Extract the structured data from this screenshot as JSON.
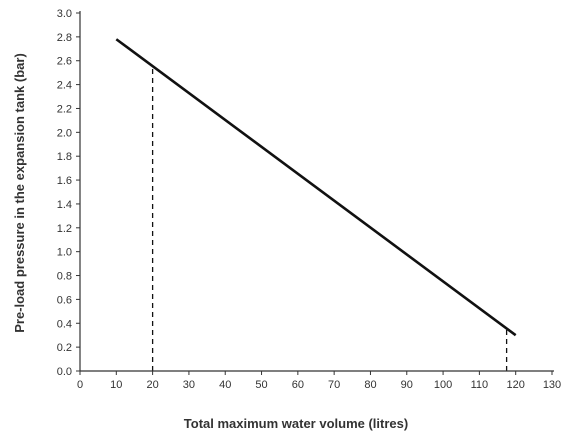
{
  "chart_data": {
    "type": "line",
    "title": "",
    "xlabel": "Total maximum water volume (litres)",
    "ylabel": "Pre-load pressure in the expansion tank (bar)",
    "xlim": [
      0,
      130
    ],
    "ylim": [
      0.0,
      3.0
    ],
    "x_ticks": [
      0,
      10,
      20,
      30,
      40,
      50,
      60,
      70,
      80,
      90,
      100,
      110,
      120,
      130
    ],
    "y_ticks": [
      "0.0",
      "0.2",
      "0.4",
      "0.6",
      "0.8",
      "1.0",
      "1.2",
      "1.4",
      "1.6",
      "1.8",
      "2.0",
      "2.2",
      "2.4",
      "2.6",
      "2.8",
      "3.0"
    ],
    "grid": false,
    "series": [
      {
        "x": [
          10,
          120
        ],
        "y": [
          2.78,
          0.3
        ]
      }
    ],
    "reference_lines": [
      {
        "style": "dashed",
        "x": 20,
        "y_from": 0.0,
        "y_to": 2.55
      },
      {
        "style": "dashed",
        "x": 117.5,
        "y_from": 0.0,
        "y_to": 0.36
      }
    ],
    "colors": {
      "line": "#111111",
      "axis": "#333333",
      "text": "#333333"
    }
  }
}
